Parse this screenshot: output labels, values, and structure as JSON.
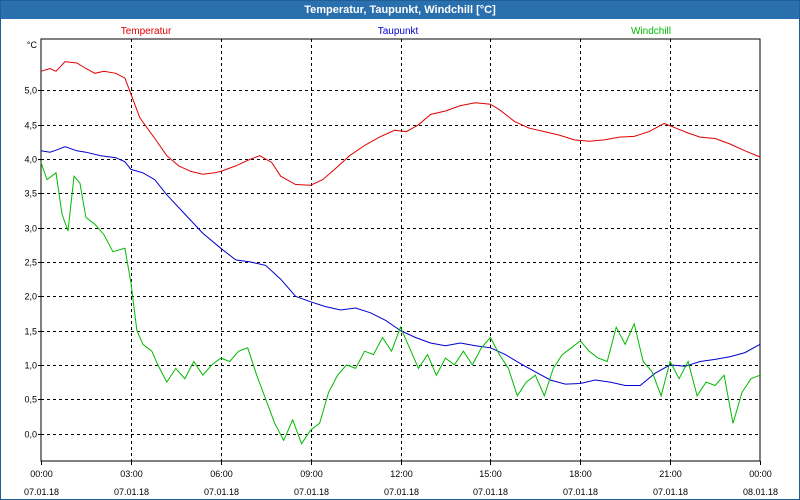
{
  "window": {
    "title": "Temperatur, Taupunkt, Windchill [°C]"
  },
  "chart_data": {
    "type": "line",
    "title": "Temperatur, Taupunkt, Windchill [°C]",
    "ylabel": "°C",
    "xlim": [
      0,
      24
    ],
    "ylim": [
      -0.4,
      5.75
    ],
    "yticks": [
      0.0,
      0.5,
      1.0,
      1.5,
      2.0,
      2.5,
      3.0,
      3.5,
      4.0,
      4.5,
      5.0
    ],
    "ytick_labels": [
      "0,0",
      "0,5",
      "1,0",
      "1,5",
      "2,0",
      "2,5",
      "3,0",
      "3,5",
      "4,0",
      "4,5",
      "5,0"
    ],
    "xticks": [
      {
        "x": 0,
        "time": "00:00",
        "date": "07.01.18"
      },
      {
        "x": 3,
        "time": "03:00",
        "date": "07.01.18"
      },
      {
        "x": 6,
        "time": "06:00",
        "date": "07.01.18"
      },
      {
        "x": 9,
        "time": "09:00",
        "date": "07.01.18"
      },
      {
        "x": 12,
        "time": "12:00",
        "date": "07.01.18"
      },
      {
        "x": 15,
        "time": "15:00",
        "date": "07.01.18"
      },
      {
        "x": 18,
        "time": "18:00",
        "date": "07.01.18"
      },
      {
        "x": 21,
        "time": "21:00",
        "date": "07.01.18"
      },
      {
        "x": 24,
        "time": "00:00",
        "date": "08.01.18"
      }
    ],
    "grid": true,
    "colors": {
      "Temperatur": "#e00000",
      "Taupunkt": "#0000cc",
      "Windchill": "#00bb00"
    },
    "series": [
      {
        "name": "Temperatur",
        "points": [
          [
            0,
            5.28
          ],
          [
            0.3,
            5.32
          ],
          [
            0.5,
            5.28
          ],
          [
            0.8,
            5.42
          ],
          [
            1.2,
            5.4
          ],
          [
            1.5,
            5.32
          ],
          [
            1.8,
            5.25
          ],
          [
            2.1,
            5.28
          ],
          [
            2.5,
            5.25
          ],
          [
            2.8,
            5.18
          ],
          [
            3.0,
            4.95
          ],
          [
            3.3,
            4.6
          ],
          [
            3.8,
            4.3
          ],
          [
            4.2,
            4.05
          ],
          [
            4.6,
            3.9
          ],
          [
            5.0,
            3.82
          ],
          [
            5.4,
            3.78
          ],
          [
            5.8,
            3.8
          ],
          [
            6.0,
            3.82
          ],
          [
            6.5,
            3.9
          ],
          [
            7.0,
            4.0
          ],
          [
            7.3,
            4.05
          ],
          [
            7.7,
            3.95
          ],
          [
            8.0,
            3.75
          ],
          [
            8.5,
            3.63
          ],
          [
            9.0,
            3.62
          ],
          [
            9.4,
            3.7
          ],
          [
            9.8,
            3.85
          ],
          [
            10.3,
            4.05
          ],
          [
            10.8,
            4.2
          ],
          [
            11.3,
            4.32
          ],
          [
            11.8,
            4.42
          ],
          [
            12.2,
            4.4
          ],
          [
            12.6,
            4.5
          ],
          [
            13.0,
            4.65
          ],
          [
            13.5,
            4.7
          ],
          [
            14.0,
            4.78
          ],
          [
            14.5,
            4.82
          ],
          [
            15.0,
            4.8
          ],
          [
            15.3,
            4.72
          ],
          [
            15.8,
            4.55
          ],
          [
            16.3,
            4.45
          ],
          [
            16.8,
            4.4
          ],
          [
            17.3,
            4.35
          ],
          [
            17.8,
            4.28
          ],
          [
            18.3,
            4.26
          ],
          [
            18.8,
            4.28
          ],
          [
            19.3,
            4.32
          ],
          [
            19.8,
            4.33
          ],
          [
            20.3,
            4.4
          ],
          [
            20.8,
            4.52
          ],
          [
            21.2,
            4.45
          ],
          [
            21.6,
            4.38
          ],
          [
            22.0,
            4.32
          ],
          [
            22.5,
            4.3
          ],
          [
            23.0,
            4.22
          ],
          [
            23.5,
            4.12
          ],
          [
            24.0,
            4.03
          ]
        ]
      },
      {
        "name": "Taupunkt",
        "points": [
          [
            0,
            4.12
          ],
          [
            0.3,
            4.1
          ],
          [
            0.5,
            4.13
          ],
          [
            0.8,
            4.18
          ],
          [
            1.2,
            4.12
          ],
          [
            1.5,
            4.1
          ],
          [
            2.0,
            4.05
          ],
          [
            2.5,
            4.02
          ],
          [
            2.8,
            3.96
          ],
          [
            3.0,
            3.85
          ],
          [
            3.4,
            3.8
          ],
          [
            3.8,
            3.7
          ],
          [
            4.2,
            3.48
          ],
          [
            4.8,
            3.2
          ],
          [
            5.4,
            2.92
          ],
          [
            6.0,
            2.7
          ],
          [
            6.5,
            2.53
          ],
          [
            7.0,
            2.5
          ],
          [
            7.5,
            2.45
          ],
          [
            8.0,
            2.25
          ],
          [
            8.5,
            2.0
          ],
          [
            9.0,
            1.92
          ],
          [
            9.5,
            1.85
          ],
          [
            10.0,
            1.8
          ],
          [
            10.5,
            1.83
          ],
          [
            11.0,
            1.76
          ],
          [
            11.5,
            1.65
          ],
          [
            12.0,
            1.5
          ],
          [
            12.5,
            1.4
          ],
          [
            13.0,
            1.32
          ],
          [
            13.5,
            1.28
          ],
          [
            14.0,
            1.32
          ],
          [
            14.5,
            1.28
          ],
          [
            15.0,
            1.25
          ],
          [
            15.5,
            1.15
          ],
          [
            16.0,
            1.02
          ],
          [
            16.5,
            0.9
          ],
          [
            17.0,
            0.78
          ],
          [
            17.5,
            0.72
          ],
          [
            18.0,
            0.73
          ],
          [
            18.5,
            0.78
          ],
          [
            19.0,
            0.75
          ],
          [
            19.5,
            0.7
          ],
          [
            20.0,
            0.7
          ],
          [
            20.5,
            0.88
          ],
          [
            21.0,
            1.0
          ],
          [
            21.5,
            0.98
          ],
          [
            22.0,
            1.05
          ],
          [
            22.5,
            1.08
          ],
          [
            23.0,
            1.12
          ],
          [
            23.5,
            1.18
          ],
          [
            24.0,
            1.3
          ]
        ]
      },
      {
        "name": "Windchill",
        "points": [
          [
            0,
            3.95
          ],
          [
            0.2,
            3.7
          ],
          [
            0.5,
            3.8
          ],
          [
            0.7,
            3.2
          ],
          [
            0.9,
            2.95
          ],
          [
            1.1,
            3.75
          ],
          [
            1.3,
            3.65
          ],
          [
            1.5,
            3.15
          ],
          [
            1.8,
            3.05
          ],
          [
            2.1,
            2.9
          ],
          [
            2.4,
            2.65
          ],
          [
            2.8,
            2.7
          ],
          [
            3.0,
            2.2
          ],
          [
            3.2,
            1.5
          ],
          [
            3.4,
            1.3
          ],
          [
            3.7,
            1.2
          ],
          [
            3.9,
            1.0
          ],
          [
            4.2,
            0.75
          ],
          [
            4.5,
            0.95
          ],
          [
            4.8,
            0.8
          ],
          [
            5.1,
            1.05
          ],
          [
            5.4,
            0.85
          ],
          [
            5.7,
            1.0
          ],
          [
            6.0,
            1.1
          ],
          [
            6.3,
            1.05
          ],
          [
            6.6,
            1.2
          ],
          [
            6.9,
            1.25
          ],
          [
            7.2,
            0.85
          ],
          [
            7.5,
            0.5
          ],
          [
            7.8,
            0.15
          ],
          [
            8.1,
            -0.1
          ],
          [
            8.4,
            0.2
          ],
          [
            8.7,
            -0.15
          ],
          [
            9.0,
            0.05
          ],
          [
            9.3,
            0.15
          ],
          [
            9.6,
            0.6
          ],
          [
            9.9,
            0.85
          ],
          [
            10.2,
            1.0
          ],
          [
            10.5,
            0.95
          ],
          [
            10.8,
            1.2
          ],
          [
            11.1,
            1.15
          ],
          [
            11.4,
            1.4
          ],
          [
            11.7,
            1.2
          ],
          [
            12.0,
            1.55
          ],
          [
            12.3,
            1.25
          ],
          [
            12.6,
            0.95
          ],
          [
            12.9,
            1.15
          ],
          [
            13.2,
            0.85
          ],
          [
            13.5,
            1.1
          ],
          [
            13.8,
            1.0
          ],
          [
            14.1,
            1.2
          ],
          [
            14.4,
            1.0
          ],
          [
            14.7,
            1.25
          ],
          [
            15.0,
            1.4
          ],
          [
            15.3,
            1.15
          ],
          [
            15.6,
            0.95
          ],
          [
            15.9,
            0.55
          ],
          [
            16.2,
            0.75
          ],
          [
            16.5,
            0.85
          ],
          [
            16.8,
            0.55
          ],
          [
            17.1,
            0.95
          ],
          [
            17.4,
            1.15
          ],
          [
            17.7,
            1.25
          ],
          [
            18.0,
            1.35
          ],
          [
            18.3,
            1.2
          ],
          [
            18.6,
            1.1
          ],
          [
            18.9,
            1.05
          ],
          [
            19.2,
            1.55
          ],
          [
            19.5,
            1.3
          ],
          [
            19.8,
            1.6
          ],
          [
            20.1,
            1.05
          ],
          [
            20.4,
            0.9
          ],
          [
            20.7,
            0.55
          ],
          [
            21.0,
            1.05
          ],
          [
            21.3,
            0.8
          ],
          [
            21.6,
            1.05
          ],
          [
            21.9,
            0.55
          ],
          [
            22.2,
            0.75
          ],
          [
            22.5,
            0.7
          ],
          [
            22.8,
            0.85
          ],
          [
            23.1,
            0.15
          ],
          [
            23.4,
            0.6
          ],
          [
            23.7,
            0.8
          ],
          [
            24.0,
            0.85
          ]
        ]
      }
    ]
  }
}
